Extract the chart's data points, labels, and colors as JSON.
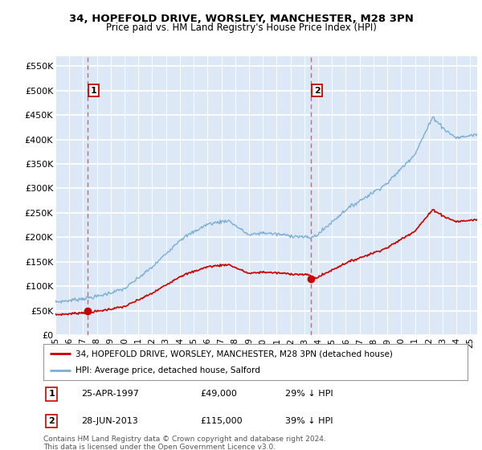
{
  "title_line1": "34, HOPEFOLD DRIVE, WORSLEY, MANCHESTER, M28 3PN",
  "title_line2": "Price paid vs. HM Land Registry's House Price Index (HPI)",
  "ylim": [
    0,
    570000
  ],
  "yticks": [
    0,
    50000,
    100000,
    150000,
    200000,
    250000,
    300000,
    350000,
    400000,
    450000,
    500000,
    550000
  ],
  "ytick_labels": [
    "£0",
    "£50K",
    "£100K",
    "£150K",
    "£200K",
    "£250K",
    "£300K",
    "£350K",
    "£400K",
    "£450K",
    "£500K",
    "£550K"
  ],
  "purchase1": {
    "date_num": 1997.32,
    "price": 49000,
    "label": "1",
    "date_str": "25-APR-1997",
    "price_str": "£49,000",
    "pct": "29% ↓ HPI"
  },
  "purchase2": {
    "date_num": 2013.49,
    "price": 115000,
    "label": "2",
    "date_str": "28-JUN-2013",
    "price_str": "£115,000",
    "pct": "39% ↓ HPI"
  },
  "legend_red": "34, HOPEFOLD DRIVE, WORSLEY, MANCHESTER, M28 3PN (detached house)",
  "legend_blue": "HPI: Average price, detached house, Salford",
  "footnote": "Contains HM Land Registry data © Crown copyright and database right 2024.\nThis data is licensed under the Open Government Licence v3.0.",
  "bg_color": "#dce8f5",
  "grid_color": "#ffffff",
  "red_line_color": "#cc0000",
  "blue_line_color": "#7bafd4",
  "dashed_color": "#e06060"
}
